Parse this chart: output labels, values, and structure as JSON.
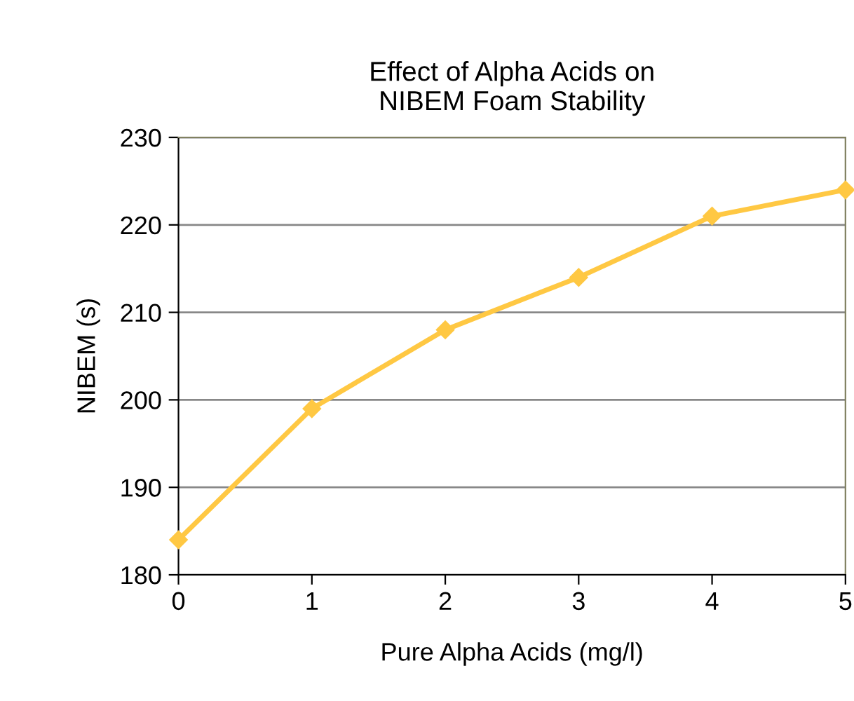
{
  "chart_data": {
    "type": "line",
    "title": "Effect of Alpha Acids on\nNIBEM Foam Stability",
    "xlabel": "Pure Alpha Acids (mg/l)",
    "ylabel": "NIBEM (s)",
    "x": [
      0,
      1,
      2,
      3,
      4,
      5
    ],
    "series": [
      {
        "color": "#ffc843",
        "values": [
          184,
          199,
          208,
          214,
          221,
          224
        ]
      }
    ],
    "xlim": [
      0,
      5
    ],
    "xticks": [
      0,
      1,
      2,
      3,
      4,
      5
    ],
    "ylim": [
      180,
      230
    ],
    "yticks": [
      180,
      190,
      200,
      210,
      220,
      230
    ],
    "grid": "y",
    "marker": "diamond",
    "line_style": "solid",
    "legend": false
  }
}
